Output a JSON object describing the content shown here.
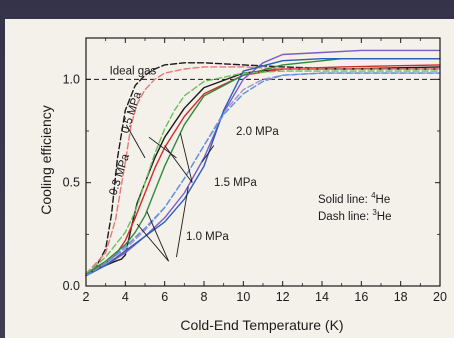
{
  "chart_data": {
    "type": "line",
    "title": "",
    "xlabel": "Cold-End Temperature (K)",
    "ylabel": "Cooling efficiency",
    "xlim": [
      2,
      20
    ],
    "ylim": [
      0,
      1.2
    ],
    "xticks": [
      "2",
      "4",
      "6",
      "8",
      "10",
      "12",
      "14",
      "16",
      "18",
      "20"
    ],
    "yticks": [
      "0.0",
      "0.5",
      "1.0"
    ],
    "ideal_gas_label": "Ideal gas",
    "ideal_gas_value": 1.0,
    "legend": {
      "solid_prefix": "Solid line: ",
      "solid_sup": "4",
      "solid_suffix": "He",
      "dash_prefix": "Dash line: ",
      "dash_sup": "3",
      "dash_suffix": "He"
    },
    "annotations": [
      "0.3 MPa",
      "0.5 MPa",
      "1.0 MPa",
      "1.5 MPa",
      "2.0 MPa"
    ],
    "series": [
      {
        "style": "solid",
        "color": "#1a1a1a",
        "x": [
          2,
          2.5,
          3,
          3.5,
          3.8,
          4,
          4.3,
          4.6,
          5,
          5.5,
          6,
          7,
          8,
          10,
          12,
          15,
          20
        ],
        "y": [
          0.05,
          0.08,
          0.1,
          0.12,
          0.13,
          0.15,
          0.28,
          0.4,
          0.5,
          0.62,
          0.72,
          0.86,
          0.96,
          1.03,
          1.05,
          1.05,
          1.06
        ]
      },
      {
        "style": "dash",
        "color": "#1a1a1a",
        "x": [
          2,
          2.5,
          3,
          3.3,
          3.6,
          4,
          4.5,
          5,
          5.5,
          6,
          7,
          8,
          10,
          12,
          15,
          20
        ],
        "y": [
          0.05,
          0.09,
          0.18,
          0.35,
          0.62,
          0.85,
          0.97,
          1.02,
          1.05,
          1.07,
          1.08,
          1.08,
          1.07,
          1.06,
          1.05,
          1.05
        ]
      },
      {
        "style": "solid",
        "color": "#d42b2b",
        "x": [
          2,
          3,
          3.5,
          4,
          4.5,
          5,
          5.5,
          6,
          7,
          8,
          10,
          12,
          15,
          20
        ],
        "y": [
          0.06,
          0.11,
          0.15,
          0.22,
          0.33,
          0.45,
          0.57,
          0.67,
          0.82,
          0.93,
          1.02,
          1.05,
          1.06,
          1.07
        ]
      },
      {
        "style": "dash",
        "color": "#e77a7a",
        "x": [
          2,
          3,
          3.5,
          4,
          4.3,
          4.6,
          5,
          5.5,
          6,
          7,
          8,
          10,
          12,
          15,
          20
        ],
        "y": [
          0.06,
          0.16,
          0.32,
          0.6,
          0.78,
          0.88,
          0.95,
          1.0,
          1.03,
          1.05,
          1.06,
          1.06,
          1.05,
          1.05,
          1.05
        ]
      },
      {
        "style": "solid",
        "color": "#2e8b3c",
        "x": [
          2,
          3,
          4,
          4.5,
          5,
          5.5,
          6,
          7,
          8,
          10,
          12,
          15,
          20
        ],
        "y": [
          0.06,
          0.12,
          0.2,
          0.26,
          0.34,
          0.46,
          0.58,
          0.78,
          0.92,
          1.02,
          1.07,
          1.1,
          1.1
        ]
      },
      {
        "style": "dash",
        "color": "#6cc05c",
        "x": [
          2,
          3,
          4,
          4.5,
          5,
          5.5,
          6,
          6.5,
          7,
          8,
          10,
          12,
          15,
          20
        ],
        "y": [
          0.06,
          0.14,
          0.26,
          0.36,
          0.5,
          0.64,
          0.76,
          0.85,
          0.92,
          0.99,
          1.03,
          1.04,
          1.04,
          1.04
        ]
      },
      {
        "style": "solid",
        "color": "#7b5bc8",
        "x": [
          2,
          3,
          4,
          5,
          6,
          7,
          8,
          9,
          10,
          11,
          12,
          14,
          16,
          20
        ],
        "y": [
          0.05,
          0.1,
          0.16,
          0.24,
          0.33,
          0.45,
          0.62,
          0.84,
          1.0,
          1.08,
          1.12,
          1.13,
          1.14,
          1.14
        ]
      },
      {
        "style": "dash",
        "color": "#a88fd8",
        "x": [
          2,
          3,
          4,
          5,
          6,
          7,
          8,
          9,
          10,
          11,
          12,
          14,
          16,
          20
        ],
        "y": [
          0.05,
          0.11,
          0.18,
          0.27,
          0.38,
          0.52,
          0.68,
          0.84,
          0.95,
          1.0,
          1.02,
          1.03,
          1.03,
          1.03
        ]
      },
      {
        "style": "solid",
        "color": "#2a5fb8",
        "x": [
          2,
          3,
          4,
          5,
          6,
          7,
          8,
          9,
          10,
          12,
          14,
          16,
          20
        ],
        "y": [
          0.05,
          0.1,
          0.17,
          0.24,
          0.31,
          0.42,
          0.58,
          0.85,
          1.04,
          1.09,
          1.1,
          1.1,
          1.1
        ]
      },
      {
        "style": "dash",
        "color": "#5d94d9",
        "x": [
          2,
          3,
          4,
          5,
          6,
          7,
          8,
          9,
          10,
          11,
          12,
          14,
          16,
          20
        ],
        "y": [
          0.05,
          0.11,
          0.19,
          0.28,
          0.38,
          0.52,
          0.68,
          0.83,
          0.93,
          0.99,
          1.02,
          1.03,
          1.03,
          1.03
        ]
      }
    ]
  }
}
